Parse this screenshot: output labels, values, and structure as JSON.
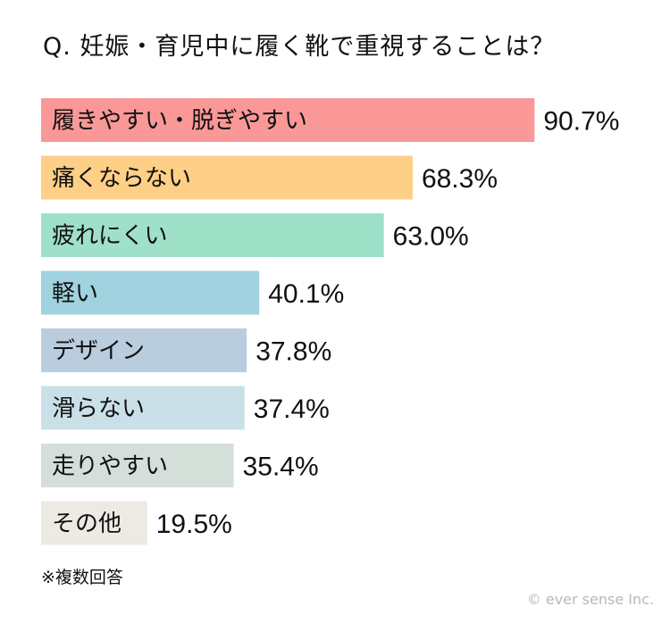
{
  "title": "Q. 妊娠・育児中に履く靴で重視することは？",
  "note": "※複数回答",
  "credit": "© ever sense Inc.",
  "chart_data": {
    "type": "bar",
    "orientation": "horizontal",
    "categories": [
      "履きやすい・脱ぎやすい",
      "痛くならない",
      "疲れにくい",
      "軽い",
      "デザイン",
      "滑らない",
      "走りやすい",
      "その他"
    ],
    "values": [
      90.7,
      68.3,
      63.0,
      40.1,
      37.8,
      37.4,
      35.4,
      19.5
    ],
    "value_labels": [
      "90.7%",
      "68.3%",
      "63.0%",
      "40.1%",
      "37.8%",
      "37.4%",
      "35.4%",
      "19.5%"
    ],
    "colors": [
      "#fa9898",
      "#fecf86",
      "#9fe0c9",
      "#a0d2df",
      "#bacddf",
      "#c9e0e8",
      "#d5dfd9",
      "#eceae3"
    ],
    "xlim": [
      0,
      100
    ],
    "grid": false,
    "legend": "none"
  }
}
